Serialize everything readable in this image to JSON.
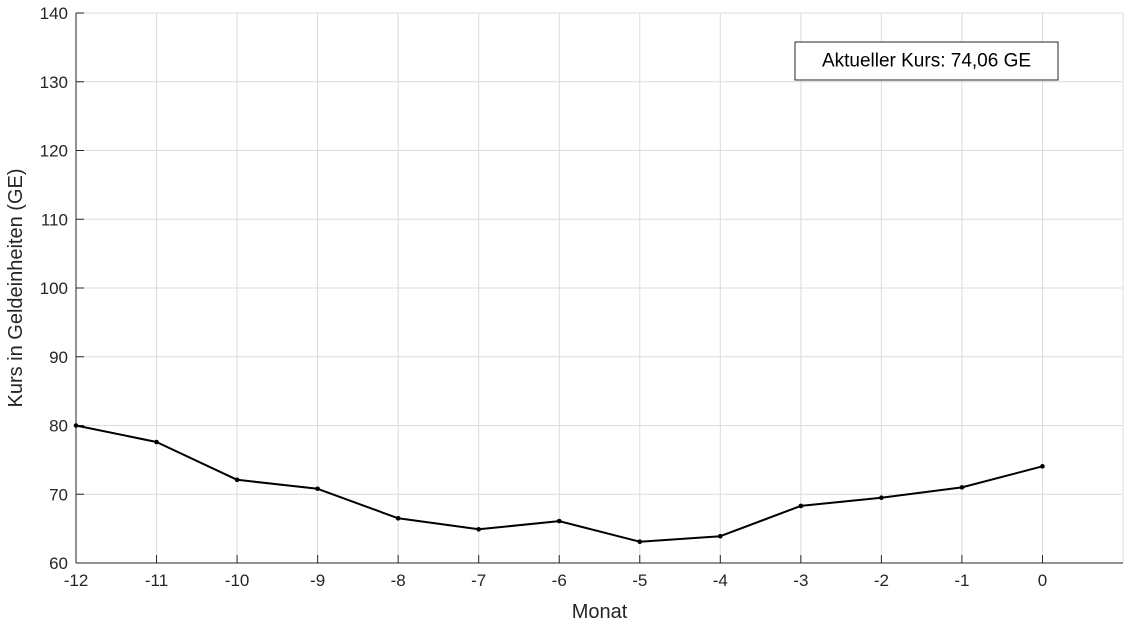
{
  "chart_data": {
    "type": "line",
    "title": "",
    "xlabel": "Monat",
    "ylabel": "Kurs in Geldeinheiten (GE)",
    "xlim": [
      -12,
      1
    ],
    "ylim": [
      60,
      140
    ],
    "xticks": [
      "-12",
      "-11",
      "-10",
      "-9",
      "-8",
      "-7",
      "-6",
      "-5",
      "-4",
      "-3",
      "-2",
      "-1",
      "0"
    ],
    "yticks": [
      "60",
      "70",
      "80",
      "90",
      "100",
      "110",
      "120",
      "130",
      "140"
    ],
    "grid": true,
    "series": [
      {
        "x": [
          -12,
          -11,
          -10,
          -9,
          -8,
          -7,
          -6,
          -5,
          -4,
          -3,
          -2,
          -1,
          0
        ],
        "y": [
          80.0,
          77.6,
          72.1,
          70.8,
          66.5,
          64.9,
          66.1,
          63.1,
          63.9,
          68.3,
          69.5,
          71.0,
          74.06
        ],
        "color": "#000000",
        "marker": "dot"
      }
    ],
    "annotation": {
      "text": "Aktueller Kurs: 74,06 GE",
      "position": "top-right"
    }
  }
}
